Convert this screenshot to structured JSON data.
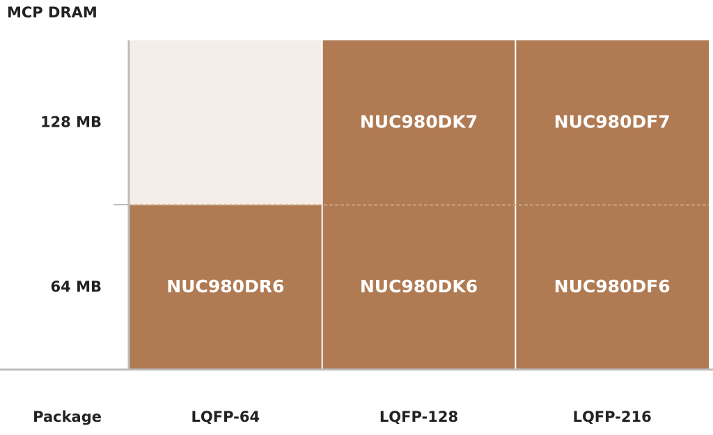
{
  "y_axis_title": "MCP DRAM",
  "x_axis_title": "Package",
  "row_labels": [
    "128 MB",
    "64 MB"
  ],
  "column_labels": [
    "LQFP-64",
    "LQFP-128",
    "LQFP-216"
  ],
  "cells": [
    [
      null,
      "NUC980DK7",
      "NUC980DF7"
    ],
    [
      "NUC980DR6",
      "NUC980DK6",
      "NUC980DF6"
    ]
  ]
}
